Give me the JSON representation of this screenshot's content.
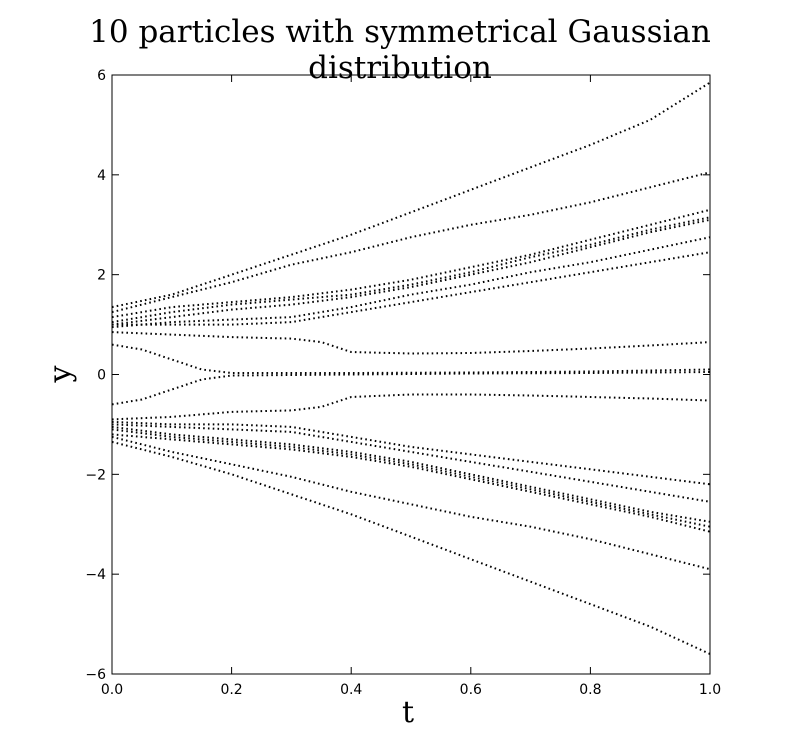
{
  "chart_data": {
    "type": "line",
    "title": "10 particles with symmetrical Gaussian distribution",
    "xlabel": "t",
    "ylabel": "y",
    "xlim": [
      0.0,
      1.0
    ],
    "ylim": [
      -6,
      6
    ],
    "xticks": [
      "0.0",
      "0.2",
      "0.4",
      "0.6",
      "0.8",
      "1.0"
    ],
    "yticks": [
      "−6",
      "−4",
      "−2",
      "0",
      "2",
      "4",
      "6"
    ],
    "grid": false,
    "legend": "none",
    "line_style": "dotted",
    "color": "#000000",
    "series": [
      {
        "x": [
          0,
          0.1,
          0.2,
          0.3,
          0.4,
          0.5,
          0.6,
          0.7,
          0.8,
          0.9,
          1.0
        ],
        "y": [
          1.35,
          1.6,
          2.0,
          2.4,
          2.8,
          3.25,
          3.7,
          4.15,
          4.6,
          5.1,
          5.85
        ]
      },
      {
        "x": [
          0,
          0.1,
          0.2,
          0.3,
          0.4,
          0.5,
          0.6,
          0.7,
          0.8,
          0.9,
          1.0
        ],
        "y": [
          1.25,
          1.55,
          1.85,
          2.2,
          2.45,
          2.75,
          3.0,
          3.2,
          3.45,
          3.75,
          4.05
        ]
      },
      {
        "x": [
          0,
          0.1,
          0.2,
          0.3,
          0.4,
          0.5,
          0.6,
          0.7,
          0.8,
          0.9,
          1.0
        ],
        "y": [
          1.15,
          1.35,
          1.45,
          1.55,
          1.7,
          1.9,
          2.15,
          2.4,
          2.7,
          3.0,
          3.3
        ]
      },
      {
        "x": [
          0,
          0.1,
          0.2,
          0.3,
          0.4,
          0.5,
          0.6,
          0.7,
          0.8,
          0.9,
          1.0
        ],
        "y": [
          1.05,
          1.25,
          1.4,
          1.5,
          1.6,
          1.8,
          2.05,
          2.35,
          2.6,
          2.9,
          3.15
        ]
      },
      {
        "x": [
          0,
          0.1,
          0.2,
          0.3,
          0.4,
          0.5,
          0.6,
          0.7,
          0.8,
          0.9,
          1.0
        ],
        "y": [
          1.0,
          1.15,
          1.3,
          1.4,
          1.55,
          1.75,
          2.0,
          2.25,
          2.55,
          2.85,
          3.1
        ]
      },
      {
        "x": [
          0,
          0.1,
          0.2,
          0.3,
          0.4,
          0.5,
          0.6,
          0.7,
          0.8,
          0.9,
          1.0
        ],
        "y": [
          0.95,
          1.05,
          1.1,
          1.15,
          1.35,
          1.6,
          1.8,
          2.05,
          2.25,
          2.5,
          2.75
        ]
      },
      {
        "x": [
          0,
          0.1,
          0.2,
          0.3,
          0.4,
          0.5,
          0.6,
          0.7,
          0.8,
          0.9,
          1.0
        ],
        "y": [
          1.0,
          1.0,
          1.0,
          1.05,
          1.25,
          1.45,
          1.65,
          1.85,
          2.05,
          2.25,
          2.45
        ]
      },
      {
        "x": [
          0,
          0.1,
          0.2,
          0.3,
          0.35,
          0.4,
          0.5,
          0.6,
          0.7,
          0.8,
          0.9,
          1.0
        ],
        "y": [
          0.85,
          0.8,
          0.75,
          0.72,
          0.65,
          0.45,
          0.42,
          0.43,
          0.47,
          0.52,
          0.58,
          0.65
        ]
      },
      {
        "x": [
          0,
          0.05,
          0.1,
          0.15,
          0.2,
          0.4,
          0.6,
          0.8,
          1.0
        ],
        "y": [
          0.6,
          0.5,
          0.3,
          0.1,
          0.03,
          0.03,
          0.04,
          0.06,
          0.1
        ]
      },
      {
        "x": [
          0,
          0.05,
          0.1,
          0.15,
          0.2,
          0.4,
          0.6,
          0.8,
          1.0
        ],
        "y": [
          -0.6,
          -0.5,
          -0.3,
          -0.1,
          -0.02,
          0.0,
          0.02,
          0.03,
          0.05
        ]
      },
      {
        "x": [
          0,
          0.1,
          0.2,
          0.3,
          0.35,
          0.4,
          0.5,
          0.6,
          0.7,
          0.8,
          0.9,
          1.0
        ],
        "y": [
          -0.9,
          -0.85,
          -0.75,
          -0.72,
          -0.65,
          -0.45,
          -0.4,
          -0.4,
          -0.42,
          -0.45,
          -0.48,
          -0.52
        ]
      },
      {
        "x": [
          0,
          0.1,
          0.2,
          0.3,
          0.4,
          0.5,
          0.6,
          0.7,
          0.8,
          0.9,
          1.0
        ],
        "y": [
          -0.95,
          -1.0,
          -1.0,
          -1.05,
          -1.25,
          -1.45,
          -1.6,
          -1.75,
          -1.9,
          -2.05,
          -2.2
        ]
      },
      {
        "x": [
          0,
          0.1,
          0.2,
          0.3,
          0.4,
          0.5,
          0.6,
          0.7,
          0.8,
          0.9,
          1.0
        ],
        "y": [
          -1.0,
          -1.05,
          -1.1,
          -1.15,
          -1.35,
          -1.55,
          -1.75,
          -1.95,
          -2.15,
          -2.35,
          -2.55
        ]
      },
      {
        "x": [
          0,
          0.1,
          0.2,
          0.3,
          0.4,
          0.5,
          0.6,
          0.7,
          0.8,
          0.9,
          1.0
        ],
        "y": [
          -1.05,
          -1.2,
          -1.3,
          -1.4,
          -1.55,
          -1.75,
          -2.0,
          -2.25,
          -2.5,
          -2.75,
          -2.95
        ]
      },
      {
        "x": [
          0,
          0.1,
          0.2,
          0.3,
          0.4,
          0.5,
          0.6,
          0.7,
          0.8,
          0.9,
          1.0
        ],
        "y": [
          -1.1,
          -1.25,
          -1.35,
          -1.45,
          -1.6,
          -1.8,
          -2.05,
          -2.3,
          -2.55,
          -2.8,
          -3.05
        ]
      },
      {
        "x": [
          0,
          0.1,
          0.2,
          0.3,
          0.4,
          0.5,
          0.6,
          0.7,
          0.8,
          0.9,
          1.0
        ],
        "y": [
          -1.2,
          -1.3,
          -1.4,
          -1.5,
          -1.65,
          -1.85,
          -2.1,
          -2.35,
          -2.6,
          -2.85,
          -3.15
        ]
      },
      {
        "x": [
          0,
          0.1,
          0.2,
          0.3,
          0.4,
          0.5,
          0.6,
          0.7,
          0.8,
          0.9,
          1.0
        ],
        "y": [
          -1.25,
          -1.55,
          -1.8,
          -2.05,
          -2.35,
          -2.6,
          -2.85,
          -3.05,
          -3.3,
          -3.6,
          -3.9
        ]
      },
      {
        "x": [
          0,
          0.1,
          0.2,
          0.3,
          0.4,
          0.5,
          0.6,
          0.7,
          0.8,
          0.9,
          1.0
        ],
        "y": [
          -1.35,
          -1.65,
          -2.0,
          -2.4,
          -2.8,
          -3.25,
          -3.7,
          -4.15,
          -4.6,
          -5.05,
          -5.6
        ]
      }
    ]
  }
}
